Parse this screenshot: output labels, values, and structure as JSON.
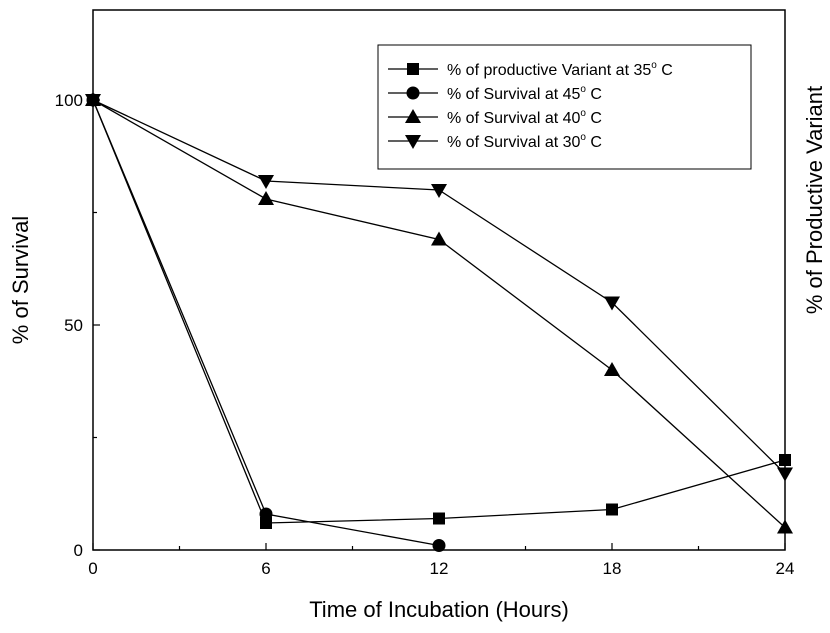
{
  "chart_data": {
    "type": "line",
    "title": "",
    "xlabel": "Time of Incubation (Hours)",
    "ylabel": "% of Survival",
    "y2label": "% of Productive Variant",
    "xlim": [
      0,
      24
    ],
    "ylim": [
      0,
      120
    ],
    "x_ticks": [
      0,
      6,
      12,
      18,
      24
    ],
    "y_ticks": [
      0,
      50,
      100
    ],
    "grid": false,
    "legend_position": "top-right",
    "series": [
      {
        "name": "% of productive Variant at 35",
        "name_sup": "o",
        "name_suffix": " C",
        "marker": "square",
        "x": [
          0,
          6,
          12,
          18,
          24
        ],
        "values": [
          100,
          6,
          7,
          9,
          20
        ]
      },
      {
        "name": "% of Survival at 45",
        "name_sup": "o",
        "name_suffix": " C",
        "marker": "circle",
        "x": [
          0,
          6,
          12
        ],
        "values": [
          100,
          8,
          1
        ]
      },
      {
        "name": "% of Survival at 40",
        "name_sup": "o",
        "name_suffix": " C",
        "marker": "triangle-up",
        "x": [
          0,
          6,
          12,
          18,
          24
        ],
        "values": [
          100,
          78,
          69,
          40,
          5
        ]
      },
      {
        "name": "% of Survival at 30",
        "name_sup": "o",
        "name_suffix": " C",
        "marker": "triangle-down",
        "x": [
          0,
          6,
          12,
          18,
          24
        ],
        "values": [
          100,
          82,
          80,
          55,
          17
        ]
      }
    ]
  }
}
